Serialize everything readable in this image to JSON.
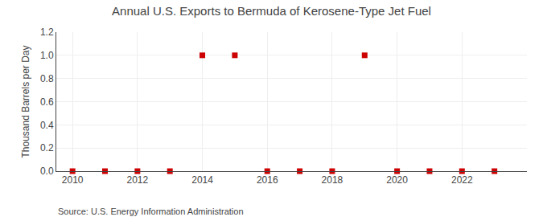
{
  "chart_data": {
    "type": "scatter",
    "title": "Annual U.S. Exports to Bermuda of Kerosene-Type Jet Fuel",
    "ylabel": "Thousand Barrels per Day",
    "annotations": [
      "Source: U.S. Energy Information Administration"
    ],
    "x": [
      2010,
      2011,
      2012,
      2013,
      2014,
      2015,
      2016,
      2017,
      2018,
      2019,
      2020,
      2021,
      2022,
      2023
    ],
    "values": [
      0.0,
      0.0,
      0.0,
      0.0,
      1.0,
      1.0,
      0.0,
      0.0,
      0.0,
      1.0,
      0.0,
      0.0,
      0.0,
      0.0
    ],
    "color": "#cc0000",
    "marker": "square",
    "xlim": [
      2009.5,
      2024.0
    ],
    "xticks": [
      2010,
      2012,
      2014,
      2016,
      2018,
      2020,
      2022
    ],
    "ylim": [
      0.0,
      1.2
    ],
    "yticks": [
      {
        "value": 0.0,
        "label": "0.0"
      },
      0.2,
      0.4,
      0.6,
      0.8,
      {
        "value": 1.0,
        "label": "1.0"
      },
      1.2
    ],
    "grid": true
  }
}
